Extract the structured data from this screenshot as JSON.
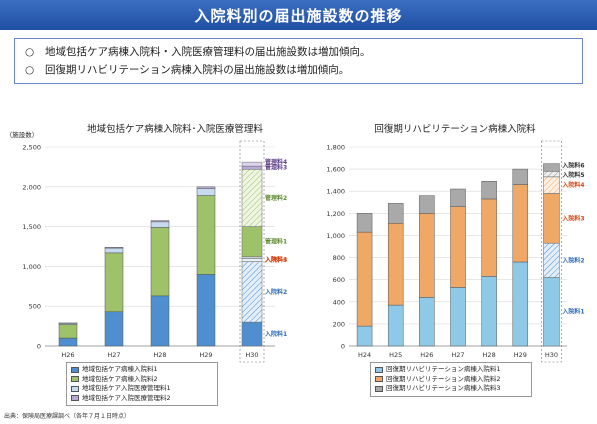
{
  "header": {
    "title": "入院料別の届出施設数の推移"
  },
  "summary": {
    "bullet": "○",
    "lines": [
      "地域包括ケア病棟入院料・入院医療管理料の届出施設数は増加傾向。",
      "回復期リハビリテーション病棟入院料の届出施設数は増加傾向。"
    ]
  },
  "source_note": "出典：保険局医療課調べ（各年７月１日時点）",
  "colors": {
    "blue1": "#4f8fd0",
    "blue2": "#c6dbf0",
    "green1": "#9dc26a",
    "lavender": "#b9a9d6",
    "blue_r1": "#8ec9e8",
    "orange": "#f0a867",
    "gray": "#a9a9a9",
    "label_blue": "#2f6db5",
    "label_green": "#5f8a2f",
    "label_purple": "#5f3f8a",
    "label_red": "#d04a1a"
  },
  "chart_data": [
    {
      "type": "bar",
      "stacked": true,
      "title": "地域包括ケア病棟入院料･入院医療管理料",
      "ylabel": "（施設数）",
      "ylim": [
        0,
        2500
      ],
      "yticks": [
        "0",
        "500",
        "1,000",
        "1,500",
        "2,000",
        "2,500"
      ],
      "categories": [
        "H26",
        "H27",
        "H28",
        "H29",
        "H30"
      ],
      "series": [
        {
          "name": "地域包括ケア病棟入院料1",
          "values": [
            100,
            430,
            630,
            900,
            null
          ]
        },
        {
          "name": "地域包括ケア病棟入院料2",
          "values": [
            170,
            740,
            860,
            990,
            null
          ]
        },
        {
          "name": "地域包括ケア入院医療管理料1",
          "values": [
            15,
            60,
            70,
            90,
            null
          ]
        },
        {
          "name": "地域包括ケア入院医療管理料2",
          "values": [
            5,
            10,
            15,
            20,
            null
          ]
        }
      ],
      "h30_breakdown": [
        {
          "label": "入院料1",
          "value": 300
        },
        {
          "label": "入院料2",
          "value": 760
        },
        {
          "label": "入院料3",
          "value": 40
        },
        {
          "label": "入院料4",
          "value": 20
        },
        {
          "label": "管理料1",
          "value": 380
        },
        {
          "label": "管理料2",
          "value": 720
        },
        {
          "label": "管理料3",
          "value": 40
        },
        {
          "label": "管理料4",
          "value": 50
        }
      ],
      "grid": true,
      "legend_position": "bottom"
    },
    {
      "type": "bar",
      "stacked": true,
      "title": "回復期リハビリテーション病棟入院料",
      "ylim": [
        0,
        1800
      ],
      "yticks": [
        "0",
        "200",
        "400",
        "600",
        "800",
        "1,000",
        "1,200",
        "1,400",
        "1,600",
        "1,800"
      ],
      "categories": [
        "H24",
        "H25",
        "H26",
        "H27",
        "H28",
        "H29",
        "H30"
      ],
      "series": [
        {
          "name": "回復期リハビリテーション病棟入院料1",
          "values": [
            180,
            370,
            440,
            530,
            630,
            760,
            null
          ]
        },
        {
          "name": "回復期リハビリテーション病棟入院料2",
          "values": [
            850,
            740,
            760,
            730,
            700,
            700,
            null
          ]
        },
        {
          "name": "回復期リハビリテーション病棟入院料3",
          "values": [
            170,
            180,
            160,
            160,
            160,
            140,
            null
          ]
        }
      ],
      "h30_breakdown": [
        {
          "label": "入院料1",
          "value": 620
        },
        {
          "label": "入院料2",
          "value": 310
        },
        {
          "label": "入院料3",
          "value": 450
        },
        {
          "label": "入院料4",
          "value": 150
        },
        {
          "label": "入院料5",
          "value": 50
        },
        {
          "label": "入院料6",
          "value": 70
        }
      ],
      "grid": true,
      "legend_position": "bottom"
    }
  ]
}
